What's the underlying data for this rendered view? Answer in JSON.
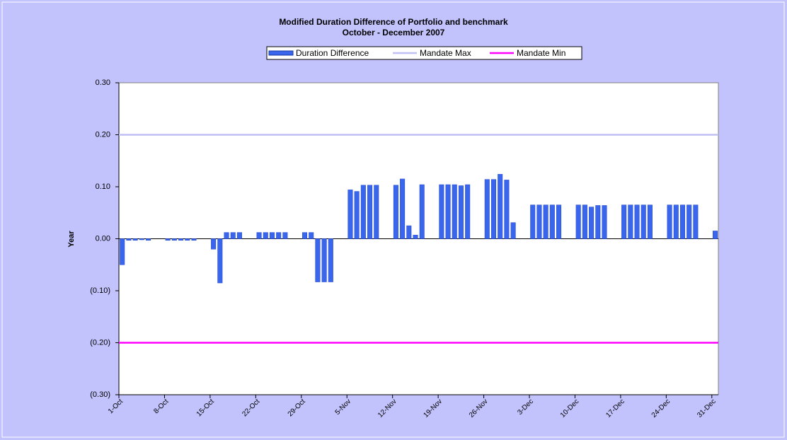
{
  "chart_data": {
    "type": "bar",
    "title": "Modified Duration Difference  of Portfolio and benchmark",
    "subtitle": "October - December 2007",
    "y_label": "Year",
    "categories": [
      "1-Oct",
      null,
      null,
      null,
      null,
      null,
      null,
      "8-Oct",
      null,
      null,
      null,
      null,
      null,
      null,
      "15-Oct",
      null,
      null,
      null,
      null,
      null,
      null,
      "22-Oct",
      null,
      null,
      null,
      null,
      null,
      null,
      "29-Oct",
      null,
      null,
      null,
      null,
      null,
      null,
      "5-Nov",
      null,
      null,
      null,
      null,
      null,
      null,
      "12-Nov",
      null,
      null,
      null,
      null,
      null,
      null,
      "19-Nov",
      null,
      null,
      null,
      null,
      null,
      null,
      "26-Nov",
      null,
      null,
      null,
      null,
      null,
      null,
      "3-Dec",
      null,
      null,
      null,
      null,
      null,
      null,
      "10-Dec",
      null,
      null,
      null,
      null,
      null,
      null,
      "17-Dec",
      null,
      null,
      null,
      null,
      null,
      null,
      "24-Dec",
      null,
      null,
      null,
      null,
      null,
      null,
      "31-Dec"
    ],
    "series": [
      {
        "name": "Duration Difference",
        "type": "bar",
        "color": "#3a66ee",
        "values": [
          -0.05,
          -0.003,
          -0.003,
          -0.002,
          -0.003,
          null,
          null,
          -0.003,
          -0.003,
          -0.003,
          -0.003,
          -0.003,
          null,
          null,
          -0.02,
          -0.085,
          0.012,
          0.012,
          0.012,
          null,
          null,
          0.012,
          0.012,
          0.012,
          0.012,
          0.012,
          null,
          null,
          0.012,
          0.012,
          -0.083,
          -0.083,
          -0.083,
          null,
          null,
          0.094,
          0.091,
          0.103,
          0.103,
          0.103,
          null,
          null,
          0.103,
          0.115,
          0.025,
          0.007,
          0.104,
          null,
          null,
          0.104,
          0.104,
          0.104,
          0.102,
          0.104,
          null,
          null,
          0.114,
          0.114,
          0.124,
          0.113,
          0.031,
          null,
          null,
          0.065,
          0.065,
          0.065,
          0.065,
          0.065,
          null,
          null,
          0.065,
          0.065,
          0.061,
          0.064,
          0.064,
          null,
          null,
          0.065,
          0.065,
          0.065,
          0.065,
          0.065,
          null,
          null,
          0.065,
          0.065,
          0.065,
          0.065,
          0.065,
          null,
          null,
          0.015
        ]
      },
      {
        "name": "Mandate Max",
        "type": "line",
        "color": "#c0c0f4",
        "values": [
          0.2,
          0.2,
          0.2,
          0.2,
          0.2,
          0.2,
          0.2,
          0.2,
          0.2,
          0.2,
          0.2,
          0.2,
          0.2,
          0.2,
          0.2,
          0.2,
          0.2,
          0.2,
          0.2,
          0.2,
          0.2,
          0.2,
          0.2,
          0.2,
          0.2,
          0.2,
          0.2,
          0.2,
          0.2,
          0.2,
          0.2,
          0.2,
          0.2,
          0.2,
          0.2,
          0.2,
          0.2,
          0.2,
          0.2,
          0.2,
          0.2,
          0.2,
          0.2,
          0.2,
          0.2,
          0.2,
          0.2,
          0.2,
          0.2,
          0.2,
          0.2,
          0.2,
          0.2,
          0.2,
          0.2,
          0.2,
          0.2,
          0.2,
          0.2,
          0.2,
          0.2,
          0.2,
          0.2,
          0.2,
          0.2,
          0.2,
          0.2,
          0.2,
          0.2,
          0.2,
          0.2,
          0.2,
          0.2,
          0.2,
          0.2,
          0.2,
          0.2,
          0.2,
          0.2,
          0.2,
          0.2,
          0.2,
          0.2,
          0.2,
          0.2,
          0.2,
          0.2,
          0.2,
          0.2,
          0.2,
          0.2,
          0.2
        ]
      },
      {
        "name": "Mandate Min",
        "type": "line",
        "color": "#ff00ff",
        "values": [
          -0.2,
          -0.2,
          -0.2,
          -0.2,
          -0.2,
          -0.2,
          -0.2,
          -0.2,
          -0.2,
          -0.2,
          -0.2,
          -0.2,
          -0.2,
          -0.2,
          -0.2,
          -0.2,
          -0.2,
          -0.2,
          -0.2,
          -0.2,
          -0.2,
          -0.2,
          -0.2,
          -0.2,
          -0.2,
          -0.2,
          -0.2,
          -0.2,
          -0.2,
          -0.2,
          -0.2,
          -0.2,
          -0.2,
          -0.2,
          -0.2,
          -0.2,
          -0.2,
          -0.2,
          -0.2,
          -0.2,
          -0.2,
          -0.2,
          -0.2,
          -0.2,
          -0.2,
          -0.2,
          -0.2,
          -0.2,
          -0.2,
          -0.2,
          -0.2,
          -0.2,
          -0.2,
          -0.2,
          -0.2,
          -0.2,
          -0.2,
          -0.2,
          -0.2,
          -0.2,
          -0.2,
          -0.2,
          -0.2,
          -0.2,
          -0.2,
          -0.2,
          -0.2,
          -0.2,
          -0.2,
          -0.2,
          -0.2,
          -0.2,
          -0.2,
          -0.2,
          -0.2,
          -0.2,
          -0.2,
          -0.2,
          -0.2,
          -0.2,
          -0.2,
          -0.2,
          -0.2,
          -0.2,
          -0.2,
          -0.2,
          -0.2,
          -0.2,
          -0.2,
          -0.2,
          -0.2,
          -0.2
        ]
      }
    ],
    "ylim": [
      -0.3,
      0.3
    ],
    "yticks": [
      {
        "value": -0.3,
        "label": "(0.30)"
      },
      {
        "value": -0.2,
        "label": "(0.20)"
      },
      {
        "value": -0.1,
        "label": "(0.10)"
      },
      {
        "value": 0,
        "label": "0.00"
      },
      {
        "value": 0.1,
        "label": "0.10"
      },
      {
        "value": 0.2,
        "label": "0.20"
      },
      {
        "value": 0.3,
        "label": "0.30"
      }
    ],
    "grid": false,
    "legend": "top"
  }
}
